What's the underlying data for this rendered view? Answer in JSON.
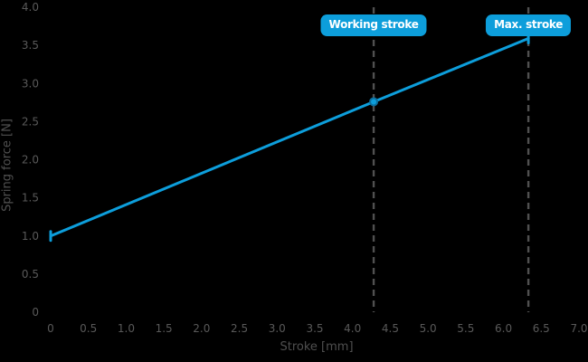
{
  "chart_data": {
    "type": "line",
    "title": "",
    "xlabel": "Stroke [mm]",
    "ylabel": "Spring force [N]",
    "xlim": [
      0,
      7.0
    ],
    "ylim": [
      0,
      4.0
    ],
    "x_ticks": [
      "0",
      "0.5",
      "1.0",
      "1.5",
      "2.0",
      "2.5",
      "3.0",
      "3.5",
      "4.0",
      "4.5",
      "5.0",
      "5.5",
      "6.0",
      "6.5",
      "7.0"
    ],
    "y_ticks": [
      "0",
      "0.5",
      "1.0",
      "1.5",
      "2.0",
      "2.5",
      "3.0",
      "3.5",
      "4.0"
    ],
    "grid": false,
    "legend": "none",
    "series": [
      {
        "name": "Spring force",
        "points": [
          {
            "x": 0,
            "y": 1.0
          },
          {
            "x": 4.28,
            "y": 2.76
          },
          {
            "x": 6.33,
            "y": 3.59
          }
        ]
      }
    ],
    "annotations": [
      {
        "label": "Working stroke",
        "x": 4.28,
        "style": "dashed-vertical-guide"
      },
      {
        "label": "Max. stroke",
        "x": 6.33,
        "style": "dashed-vertical-guide"
      }
    ],
    "colors": {
      "line": "#0d9edb",
      "annotation_box_bg": "#0d9edb",
      "annotation_text": "#ffffff",
      "guide_line": "#505050",
      "tick_text": "#595959",
      "axis_title_text": "#4f4f4f",
      "marker_stroke": "#0b6f9e",
      "background": "#000000"
    }
  }
}
